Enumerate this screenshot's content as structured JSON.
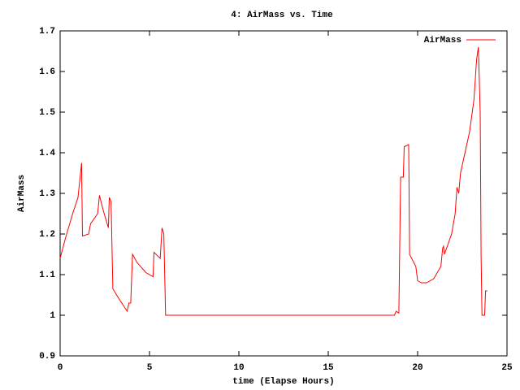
{
  "chart_data": {
    "type": "line",
    "title": "4: AirMass vs. Time",
    "x_label": "time (Elapse Hours)",
    "y_label": "AirMass",
    "x": [
      0,
      0.3,
      0.7,
      1.0,
      1.2,
      1.25,
      1.6,
      1.7,
      2.1,
      2.2,
      2.4,
      2.7,
      2.75,
      2.85,
      2.95,
      3.3,
      3.75,
      3.85,
      3.95,
      4.05,
      4.3,
      4.8,
      5.2,
      5.25,
      5.6,
      5.7,
      5.8,
      5.9,
      18.7,
      18.8,
      18.95,
      19.05,
      19.2,
      19.25,
      19.5,
      19.55,
      19.9,
      20.0,
      20.2,
      20.5,
      20.9,
      21.3,
      21.4,
      21.45,
      21.5,
      21.9,
      22.1,
      22.2,
      22.3,
      22.4,
      22.9,
      23.15,
      23.3,
      23.4,
      23.5,
      23.55,
      23.6,
      23.75,
      23.8,
      23.9
    ],
    "series": [
      {
        "name": "AirMass",
        "color": "#ff0000",
        "values": [
          1.14,
          1.19,
          1.25,
          1.29,
          1.375,
          1.195,
          1.2,
          1.225,
          1.25,
          1.295,
          1.26,
          1.215,
          1.29,
          1.28,
          1.065,
          1.04,
          1.01,
          1.03,
          1.03,
          1.15,
          1.13,
          1.105,
          1.095,
          1.155,
          1.14,
          1.215,
          1.2,
          1.0,
          1.0,
          1.01,
          1.005,
          1.34,
          1.34,
          1.415,
          1.42,
          1.15,
          1.12,
          1.085,
          1.08,
          1.08,
          1.09,
          1.12,
          1.165,
          1.17,
          1.15,
          1.2,
          1.25,
          1.315,
          1.3,
          1.35,
          1.45,
          1.53,
          1.63,
          1.66,
          1.5,
          1.15,
          1.0,
          1.0,
          1.06,
          1.06
        ]
      }
    ],
    "xlim": [
      0,
      25
    ],
    "xticks": [
      0,
      5,
      10,
      15,
      20,
      25
    ],
    "ylim": [
      0.9,
      1.7
    ],
    "yticks": [
      0.9,
      1,
      1.1,
      1.2,
      1.3,
      1.4,
      1.5,
      1.6,
      1.7
    ],
    "legend": "top-right"
  }
}
